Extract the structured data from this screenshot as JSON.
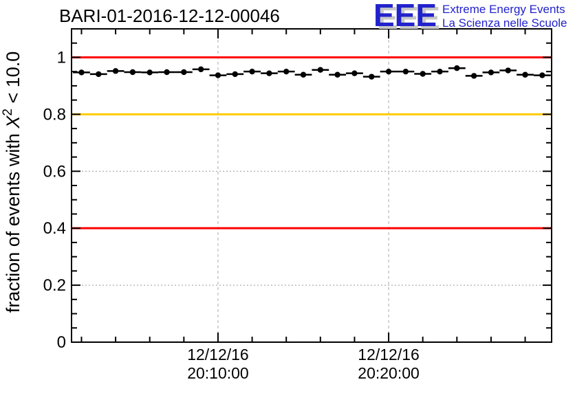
{
  "header": {
    "title": "BARI-01-2016-12-12-00046",
    "logo": {
      "acronym": "EEE",
      "line1": "Extreme Energy Events",
      "line2": "La Scienza nelle Scuole",
      "blue": "#2222cc",
      "shadow_gray": "#c8c8c8"
    }
  },
  "chart_data": {
    "type": "scatter",
    "title": "BARI-01-2016-12-12-00046",
    "ylabel_parts": {
      "prefix": "fraction of events with ",
      "variable": "X",
      "superscript": "2",
      "suffix": " < 10.0"
    },
    "ylim": [
      0,
      1.1
    ],
    "y_major_ticks": [
      0,
      0.2,
      0.4,
      0.6,
      0.8,
      1.0
    ],
    "y_tick_labels": [
      "0",
      "0.2",
      "0.4",
      "0.6",
      "0.8",
      "1"
    ],
    "y_minor_step": 0.05,
    "x_domain_sec": [
      72085,
      73773
    ],
    "x_major_ticks": [
      {
        "sec": 72600,
        "date": "12/12/16",
        "time": "20:10:00"
      },
      {
        "sec": 73200,
        "date": "12/12/16",
        "time": "20:20:00"
      }
    ],
    "x_minor_first_sec": 72120,
    "x_minor_step_sec": 120,
    "grid": {
      "h_color": "#999999",
      "v_color": "#aaaaaa"
    },
    "ref_lines": [
      {
        "y": 1.0,
        "color": "#ff0000"
      },
      {
        "y": 0.8,
        "color": "#ffcc00"
      },
      {
        "y": 0.4,
        "color": "#ff0000"
      }
    ],
    "bin_half_width_sec": 30,
    "marker_color": "#000000",
    "points": [
      {
        "time": "20:02:00",
        "sec": 72120,
        "frac": 0.947
      },
      {
        "time": "20:03:00",
        "sec": 72180,
        "frac": 0.941
      },
      {
        "time": "20:04:00",
        "sec": 72240,
        "frac": 0.952
      },
      {
        "time": "20:05:00",
        "sec": 72300,
        "frac": 0.948
      },
      {
        "time": "20:06:00",
        "sec": 72360,
        "frac": 0.947
      },
      {
        "time": "20:07:00",
        "sec": 72420,
        "frac": 0.948
      },
      {
        "time": "20:08:00",
        "sec": 72480,
        "frac": 0.948
      },
      {
        "time": "20:09:00",
        "sec": 72540,
        "frac": 0.958
      },
      {
        "time": "20:10:00",
        "sec": 72600,
        "frac": 0.937
      },
      {
        "time": "20:11:00",
        "sec": 72660,
        "frac": 0.941
      },
      {
        "time": "20:12:00",
        "sec": 72720,
        "frac": 0.95
      },
      {
        "time": "20:13:00",
        "sec": 72780,
        "frac": 0.944
      },
      {
        "time": "20:14:00",
        "sec": 72840,
        "frac": 0.95
      },
      {
        "time": "20:15:00",
        "sec": 72900,
        "frac": 0.939
      },
      {
        "time": "20:16:00",
        "sec": 72960,
        "frac": 0.956
      },
      {
        "time": "20:17:00",
        "sec": 73020,
        "frac": 0.939
      },
      {
        "time": "20:18:00",
        "sec": 73080,
        "frac": 0.944
      },
      {
        "time": "20:19:00",
        "sec": 73140,
        "frac": 0.932
      },
      {
        "time": "20:20:00",
        "sec": 73200,
        "frac": 0.95
      },
      {
        "time": "20:21:00",
        "sec": 73260,
        "frac": 0.95
      },
      {
        "time": "20:22:00",
        "sec": 73320,
        "frac": 0.942
      },
      {
        "time": "20:23:00",
        "sec": 73380,
        "frac": 0.95
      },
      {
        "time": "20:24:00",
        "sec": 73440,
        "frac": 0.962
      },
      {
        "time": "20:25:00",
        "sec": 73500,
        "frac": 0.935
      },
      {
        "time": "20:26:00",
        "sec": 73560,
        "frac": 0.947
      },
      {
        "time": "20:27:00",
        "sec": 73620,
        "frac": 0.954
      },
      {
        "time": "20:28:00",
        "sec": 73680,
        "frac": 0.939
      },
      {
        "time": "20:29:00",
        "sec": 73740,
        "frac": 0.937
      }
    ]
  }
}
